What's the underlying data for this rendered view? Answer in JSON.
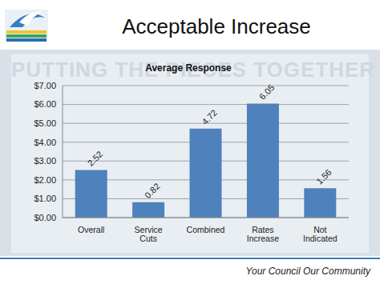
{
  "slide": {
    "title": "Acceptable Increase",
    "footer": "Your Council Our Community",
    "watermark": "PUTTING THE PIECES TOGETHER"
  },
  "chart_data": {
    "type": "bar",
    "title": "Average Response",
    "categories": [
      "Overall",
      "Service Cuts",
      "Combined",
      "Rates Increase",
      "Not Indicated"
    ],
    "values": [
      2.52,
      0.82,
      4.72,
      6.05,
      1.56
    ],
    "color": "#4f81bd",
    "ylim": [
      0,
      7
    ],
    "yticks": [
      {
        "value": 0,
        "label": "$0.00"
      },
      {
        "value": 1,
        "label": "$1.00"
      },
      {
        "value": 2,
        "label": "$2.00"
      },
      {
        "value": 3,
        "label": "$3.00"
      },
      {
        "value": 4,
        "label": "$4.00"
      },
      {
        "value": 5,
        "label": "$5.00"
      },
      {
        "value": 6,
        "label": "$6.00"
      },
      {
        "value": 7,
        "label": "$7.00"
      }
    ],
    "grid": true,
    "data_labels": true
  }
}
